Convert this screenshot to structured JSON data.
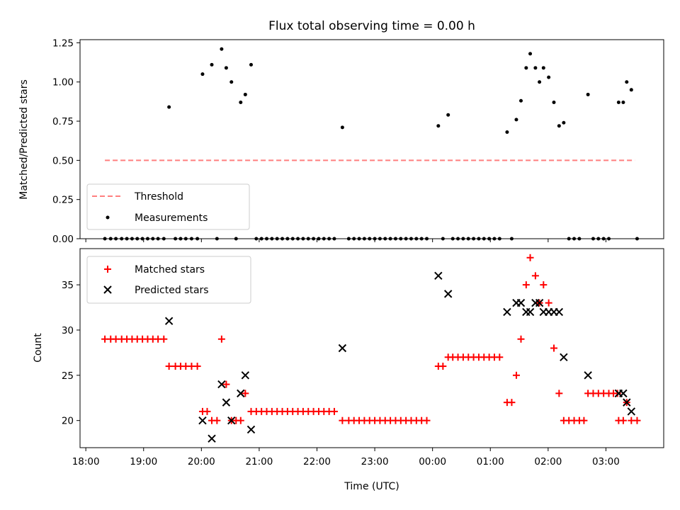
{
  "chart_data": [
    {
      "type": "scatter",
      "title": "Flux total observing time = 0.00 h",
      "xlabel": "",
      "ylabel": "Matched/Predicted stars",
      "ylim": [
        0,
        1.27
      ],
      "yticks": [
        "0.00",
        "0.25",
        "0.50",
        "0.75",
        "1.00",
        "1.25"
      ],
      "ytick_values": [
        0,
        0.25,
        0.5,
        0.75,
        1.0,
        1.25
      ],
      "legend_placement": "lower-left",
      "threshold": {
        "name": "Threshold",
        "value": 0.5,
        "color": "#ff7f7f",
        "x_start": 18.33,
        "x_end": 27.5
      },
      "series": [
        {
          "name": "Measurements",
          "color": "#000000",
          "points": [
            [
              18.33,
              0
            ],
            [
              18.43,
              0
            ],
            [
              18.52,
              0
            ],
            [
              18.62,
              0
            ],
            [
              18.71,
              0
            ],
            [
              18.8,
              0
            ],
            [
              18.89,
              0
            ],
            [
              18.98,
              0
            ],
            [
              19.07,
              0
            ],
            [
              19.16,
              0
            ],
            [
              19.25,
              0
            ],
            [
              19.35,
              0
            ],
            [
              19.44,
              0.84
            ],
            [
              19.55,
              0
            ],
            [
              19.64,
              0
            ],
            [
              19.73,
              0
            ],
            [
              19.83,
              0
            ],
            [
              19.93,
              0
            ],
            [
              20.02,
              1.05
            ],
            [
              20.18,
              1.11
            ],
            [
              20.35,
              1.21
            ],
            [
              20.43,
              1.09
            ],
            [
              20.52,
              1.0
            ],
            [
              20.68,
              0.87
            ],
            [
              20.76,
              0.92
            ],
            [
              20.86,
              1.11
            ],
            [
              20.27,
              0
            ],
            [
              20.6,
              0
            ],
            [
              20.95,
              0
            ],
            [
              21.04,
              0
            ],
            [
              21.13,
              0
            ],
            [
              21.22,
              0
            ],
            [
              21.31,
              0
            ],
            [
              21.4,
              0
            ],
            [
              21.49,
              0
            ],
            [
              21.58,
              0
            ],
            [
              21.67,
              0
            ],
            [
              21.76,
              0
            ],
            [
              21.85,
              0
            ],
            [
              21.94,
              0
            ],
            [
              22.03,
              0
            ],
            [
              22.12,
              0
            ],
            [
              22.21,
              0
            ],
            [
              22.3,
              0
            ],
            [
              22.44,
              0.71
            ],
            [
              22.55,
              0
            ],
            [
              22.64,
              0
            ],
            [
              22.73,
              0
            ],
            [
              22.82,
              0
            ],
            [
              22.91,
              0
            ],
            [
              23.0,
              0
            ],
            [
              23.09,
              0
            ],
            [
              23.18,
              0
            ],
            [
              23.27,
              0
            ],
            [
              23.36,
              0
            ],
            [
              23.45,
              0
            ],
            [
              23.54,
              0
            ],
            [
              23.63,
              0
            ],
            [
              23.72,
              0
            ],
            [
              23.81,
              0
            ],
            [
              23.9,
              0
            ],
            [
              24.1,
              0.72
            ],
            [
              24.27,
              0.79
            ],
            [
              24.18,
              0
            ],
            [
              24.35,
              0
            ],
            [
              24.44,
              0
            ],
            [
              24.53,
              0
            ],
            [
              24.62,
              0
            ],
            [
              24.71,
              0
            ],
            [
              24.8,
              0
            ],
            [
              24.89,
              0
            ],
            [
              24.98,
              0
            ],
            [
              25.07,
              0
            ],
            [
              25.16,
              0
            ],
            [
              25.29,
              0.68
            ],
            [
              25.45,
              0.76
            ],
            [
              25.53,
              0.88
            ],
            [
              25.62,
              1.09
            ],
            [
              25.69,
              1.18
            ],
            [
              25.78,
              1.09
            ],
            [
              25.85,
              1.0
            ],
            [
              25.92,
              1.09
            ],
            [
              26.01,
              1.03
            ],
            [
              26.1,
              0.87
            ],
            [
              26.19,
              0.72
            ],
            [
              26.27,
              0.74
            ],
            [
              25.37,
              0
            ],
            [
              26.36,
              0
            ],
            [
              26.45,
              0
            ],
            [
              26.54,
              0
            ],
            [
              26.69,
              0.92
            ],
            [
              26.78,
              0
            ],
            [
              26.87,
              0
            ],
            [
              26.96,
              0
            ],
            [
              27.05,
              0
            ],
            [
              27.22,
              0.87
            ],
            [
              27.3,
              0.87
            ],
            [
              27.36,
              1.0
            ],
            [
              27.44,
              0.95
            ],
            [
              27.54,
              0
            ]
          ]
        }
      ]
    },
    {
      "type": "scatter",
      "title": "",
      "xlabel": "Time (UTC)",
      "ylabel": "Count",
      "ylim": [
        17,
        39
      ],
      "yticks": [
        "20",
        "25",
        "30",
        "35"
      ],
      "ytick_values": [
        20,
        25,
        30,
        35
      ],
      "xlim": [
        17.9,
        28.0
      ],
      "xticks": [
        "18:00",
        "19:00",
        "20:00",
        "21:00",
        "22:00",
        "23:00",
        "00:00",
        "01:00",
        "02:00",
        "03:00"
      ],
      "xtick_values": [
        18,
        19,
        20,
        21,
        22,
        23,
        24,
        25,
        26,
        27
      ],
      "legend_placement": "upper-left",
      "series": [
        {
          "name": "Matched stars",
          "color": "#ff0000",
          "marker": "plus",
          "points": [
            [
              18.33,
              29
            ],
            [
              18.43,
              29
            ],
            [
              18.52,
              29
            ],
            [
              18.62,
              29
            ],
            [
              18.71,
              29
            ],
            [
              18.8,
              29
            ],
            [
              18.89,
              29
            ],
            [
              18.98,
              29
            ],
            [
              19.07,
              29
            ],
            [
              19.16,
              29
            ],
            [
              19.25,
              29
            ],
            [
              19.35,
              29
            ],
            [
              19.44,
              26
            ],
            [
              19.55,
              26
            ],
            [
              19.64,
              26
            ],
            [
              19.73,
              26
            ],
            [
              19.83,
              26
            ],
            [
              19.93,
              26
            ],
            [
              20.02,
              21
            ],
            [
              20.1,
              21
            ],
            [
              20.18,
              20
            ],
            [
              20.27,
              20
            ],
            [
              20.35,
              29
            ],
            [
              20.43,
              24
            ],
            [
              20.52,
              20
            ],
            [
              20.6,
              20
            ],
            [
              20.68,
              20
            ],
            [
              20.76,
              23
            ],
            [
              20.86,
              21
            ],
            [
              20.95,
              21
            ],
            [
              21.04,
              21
            ],
            [
              21.13,
              21
            ],
            [
              21.22,
              21
            ],
            [
              21.31,
              21
            ],
            [
              21.4,
              21
            ],
            [
              21.49,
              21
            ],
            [
              21.58,
              21
            ],
            [
              21.67,
              21
            ],
            [
              21.76,
              21
            ],
            [
              21.85,
              21
            ],
            [
              21.94,
              21
            ],
            [
              22.03,
              21
            ],
            [
              22.12,
              21
            ],
            [
              22.21,
              21
            ],
            [
              22.3,
              21
            ],
            [
              22.44,
              20
            ],
            [
              22.55,
              20
            ],
            [
              22.64,
              20
            ],
            [
              22.73,
              20
            ],
            [
              22.82,
              20
            ],
            [
              22.91,
              20
            ],
            [
              23.0,
              20
            ],
            [
              23.09,
              20
            ],
            [
              23.18,
              20
            ],
            [
              23.27,
              20
            ],
            [
              23.36,
              20
            ],
            [
              23.45,
              20
            ],
            [
              23.54,
              20
            ],
            [
              23.63,
              20
            ],
            [
              23.72,
              20
            ],
            [
              23.81,
              20
            ],
            [
              23.9,
              20
            ],
            [
              24.1,
              26
            ],
            [
              24.18,
              26
            ],
            [
              24.27,
              27
            ],
            [
              24.35,
              27
            ],
            [
              24.44,
              27
            ],
            [
              24.53,
              27
            ],
            [
              24.62,
              27
            ],
            [
              24.71,
              27
            ],
            [
              24.8,
              27
            ],
            [
              24.89,
              27
            ],
            [
              24.98,
              27
            ],
            [
              25.07,
              27
            ],
            [
              25.16,
              27
            ],
            [
              25.29,
              22
            ],
            [
              25.37,
              22
            ],
            [
              25.45,
              25
            ],
            [
              25.53,
              29
            ],
            [
              25.62,
              35
            ],
            [
              25.69,
              38
            ],
            [
              25.78,
              36
            ],
            [
              25.85,
              33
            ],
            [
              25.92,
              35
            ],
            [
              26.01,
              33
            ],
            [
              26.1,
              28
            ],
            [
              26.19,
              23
            ],
            [
              26.27,
              20
            ],
            [
              26.36,
              20
            ],
            [
              26.45,
              20
            ],
            [
              26.54,
              20
            ],
            [
              26.62,
              20
            ],
            [
              26.69,
              23
            ],
            [
              26.78,
              23
            ],
            [
              26.87,
              23
            ],
            [
              26.96,
              23
            ],
            [
              27.05,
              23
            ],
            [
              27.13,
              23
            ],
            [
              27.2,
              23
            ],
            [
              27.22,
              20
            ],
            [
              27.3,
              20
            ],
            [
              27.36,
              22
            ],
            [
              27.44,
              20
            ],
            [
              27.54,
              20
            ]
          ]
        },
        {
          "name": "Predicted stars",
          "color": "#000000",
          "marker": "x",
          "points": [
            [
              19.44,
              31
            ],
            [
              20.02,
              20
            ],
            [
              20.18,
              18
            ],
            [
              20.35,
              24
            ],
            [
              20.43,
              22
            ],
            [
              20.52,
              20
            ],
            [
              20.68,
              23
            ],
            [
              20.76,
              25
            ],
            [
              20.86,
              19
            ],
            [
              22.44,
              28
            ],
            [
              24.1,
              36
            ],
            [
              24.27,
              34
            ],
            [
              25.29,
              32
            ],
            [
              25.45,
              33
            ],
            [
              25.53,
              33
            ],
            [
              25.62,
              32
            ],
            [
              25.69,
              32
            ],
            [
              25.78,
              33
            ],
            [
              25.85,
              33
            ],
            [
              25.92,
              32
            ],
            [
              26.01,
              32
            ],
            [
              26.1,
              32
            ],
            [
              26.19,
              32
            ],
            [
              26.27,
              27
            ],
            [
              26.69,
              25
            ],
            [
              27.22,
              23
            ],
            [
              27.3,
              23
            ],
            [
              27.36,
              22
            ],
            [
              27.44,
              21
            ]
          ]
        }
      ]
    }
  ]
}
